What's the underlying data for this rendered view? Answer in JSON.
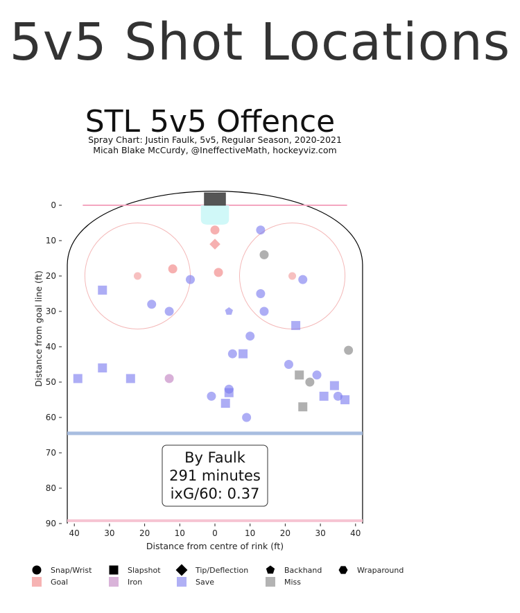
{
  "page": {
    "title": "5v5 Shot Locations"
  },
  "chart_data": {
    "type": "scatter",
    "title": "STL 5v5 Offence",
    "subtitle": [
      "Spray Chart: Justin Faulk, 5v5, Regular Season, 2020-2021",
      "Micah Blake McCurdy, @IneffectiveMath, hockeyviz.com"
    ],
    "xlabel": "Distance from centre of rink (ft)",
    "ylabel": "Distance from goal line (ft)",
    "xlim": [
      -42,
      42
    ],
    "ylim": [
      -11,
      90
    ],
    "x_ticks": [
      -40,
      -30,
      -20,
      -10,
      0,
      10,
      20,
      30,
      40
    ],
    "x_tick_labels": [
      "40",
      "30",
      "20",
      "10",
      "0",
      "10",
      "20",
      "30",
      "40"
    ],
    "y_ticks": [
      0,
      10,
      20,
      30,
      40,
      50,
      60,
      70,
      80,
      90
    ],
    "y_tick_labels": [
      "0",
      "10",
      "20",
      "30",
      "40",
      "50",
      "60",
      "70",
      "80",
      "90"
    ],
    "y_inverted": true,
    "annotation": [
      "By Faulk",
      "291 minutes",
      "ixG/60: 0.37"
    ],
    "colors": {
      "goal": "#f08080",
      "iron": "#c080c0",
      "save": "#7b7bef",
      "miss": "#808080",
      "net": "#555555",
      "crease": "#d0f8f8",
      "goal_line": "#f4a6c0",
      "blue_line": "#a8bde0",
      "circle": "#f4b8b8"
    },
    "shot_types": [
      "Snap/Wrist",
      "Slapshot",
      "Tip/Deflection",
      "Backhand",
      "Wraparound"
    ],
    "results": [
      "Goal",
      "Iron",
      "Save",
      "Miss"
    ],
    "points": [
      {
        "x": 0,
        "y": 7,
        "shot": "Snap/Wrist",
        "result": "Goal"
      },
      {
        "x": 0,
        "y": 11,
        "shot": "Tip/Deflection",
        "result": "Goal"
      },
      {
        "x": -12,
        "y": 18,
        "shot": "Snap/Wrist",
        "result": "Goal"
      },
      {
        "x": 1,
        "y": 19,
        "shot": "Snap/Wrist",
        "result": "Goal"
      },
      {
        "x": 13,
        "y": 7,
        "shot": "Snap/Wrist",
        "result": "Save"
      },
      {
        "x": 14,
        "y": 14,
        "shot": "Snap/Wrist",
        "result": "Miss"
      },
      {
        "x": -7,
        "y": 21,
        "shot": "Snap/Wrist",
        "result": "Save"
      },
      {
        "x": 25,
        "y": 21,
        "shot": "Snap/Wrist",
        "result": "Save"
      },
      {
        "x": -32,
        "y": 24,
        "shot": "Slapshot",
        "result": "Save"
      },
      {
        "x": -18,
        "y": 28,
        "shot": "Snap/Wrist",
        "result": "Save"
      },
      {
        "x": -13,
        "y": 30,
        "shot": "Snap/Wrist",
        "result": "Save"
      },
      {
        "x": 13,
        "y": 25,
        "shot": "Snap/Wrist",
        "result": "Save"
      },
      {
        "x": 14,
        "y": 30,
        "shot": "Snap/Wrist",
        "result": "Save"
      },
      {
        "x": 4,
        "y": 30,
        "shot": "Backhand",
        "result": "Save"
      },
      {
        "x": 23,
        "y": 34,
        "shot": "Slapshot",
        "result": "Save"
      },
      {
        "x": 10,
        "y": 37,
        "shot": "Snap/Wrist",
        "result": "Save"
      },
      {
        "x": 5,
        "y": 42,
        "shot": "Snap/Wrist",
        "result": "Save"
      },
      {
        "x": 8,
        "y": 42,
        "shot": "Slapshot",
        "result": "Save"
      },
      {
        "x": 38,
        "y": 41,
        "shot": "Snap/Wrist",
        "result": "Miss"
      },
      {
        "x": 21,
        "y": 45,
        "shot": "Snap/Wrist",
        "result": "Save"
      },
      {
        "x": 24,
        "y": 48,
        "shot": "Slapshot",
        "result": "Miss"
      },
      {
        "x": 27,
        "y": 50,
        "shot": "Snap/Wrist",
        "result": "Miss"
      },
      {
        "x": 29,
        "y": 48,
        "shot": "Snap/Wrist",
        "result": "Save"
      },
      {
        "x": 34,
        "y": 51,
        "shot": "Slapshot",
        "result": "Save"
      },
      {
        "x": -39,
        "y": 49,
        "shot": "Slapshot",
        "result": "Save"
      },
      {
        "x": -32,
        "y": 46,
        "shot": "Slapshot",
        "result": "Save"
      },
      {
        "x": -24,
        "y": 49,
        "shot": "Slapshot",
        "result": "Save"
      },
      {
        "x": -13,
        "y": 49,
        "shot": "Snap/Wrist",
        "result": "Iron"
      },
      {
        "x": 4,
        "y": 52,
        "shot": "Snap/Wrist",
        "result": "Save"
      },
      {
        "x": 4,
        "y": 53,
        "shot": "Slapshot",
        "result": "Save"
      },
      {
        "x": -1,
        "y": 54,
        "shot": "Snap/Wrist",
        "result": "Save"
      },
      {
        "x": 3,
        "y": 56,
        "shot": "Slapshot",
        "result": "Save"
      },
      {
        "x": 9,
        "y": 60,
        "shot": "Snap/Wrist",
        "result": "Save"
      },
      {
        "x": 25,
        "y": 57,
        "shot": "Slapshot",
        "result": "Miss"
      },
      {
        "x": 31,
        "y": 54,
        "shot": "Slapshot",
        "result": "Save"
      },
      {
        "x": 35,
        "y": 54,
        "shot": "Snap/Wrist",
        "result": "Save"
      },
      {
        "x": 37,
        "y": 55,
        "shot": "Slapshot",
        "result": "Save"
      }
    ]
  }
}
